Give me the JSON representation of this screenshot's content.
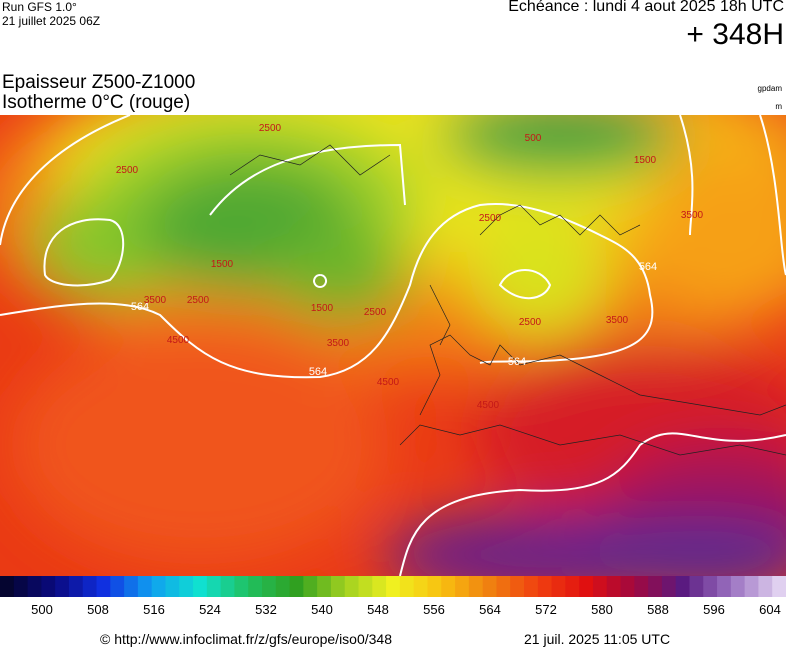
{
  "header": {
    "run": "Run GFS 1.0°",
    "run_date": "21 juillet 2025 06Z",
    "valid": "Echéance : lundi 4 aout 2025 18h UTC",
    "lead": "+ 348H"
  },
  "title": {
    "line1": "Epaisseur Z500-Z1000",
    "line2": "Isotherme 0°C (rouge)",
    "unit1": "gpdam",
    "unit2": "m"
  },
  "map": {
    "thickness_labels": [
      "564",
      "564",
      "564",
      "564"
    ],
    "isotherm_labels": [
      "2500",
      "2500",
      "1500",
      "3500",
      "2500",
      "1500",
      "2500",
      "3500",
      "4500",
      "4500",
      "2500",
      "3500",
      "500",
      "1500",
      "2500",
      "3500",
      "4500"
    ]
  },
  "legend": {
    "ticks": [
      500,
      508,
      516,
      524,
      532,
      540,
      548,
      556,
      564,
      572,
      580,
      588,
      596,
      604
    ]
  },
  "footer": {
    "url": "© http://www.infoclimat.fr/z/gfs/europe/iso0/348",
    "stamp": "21 juil. 2025 11:05 UTC"
  }
}
